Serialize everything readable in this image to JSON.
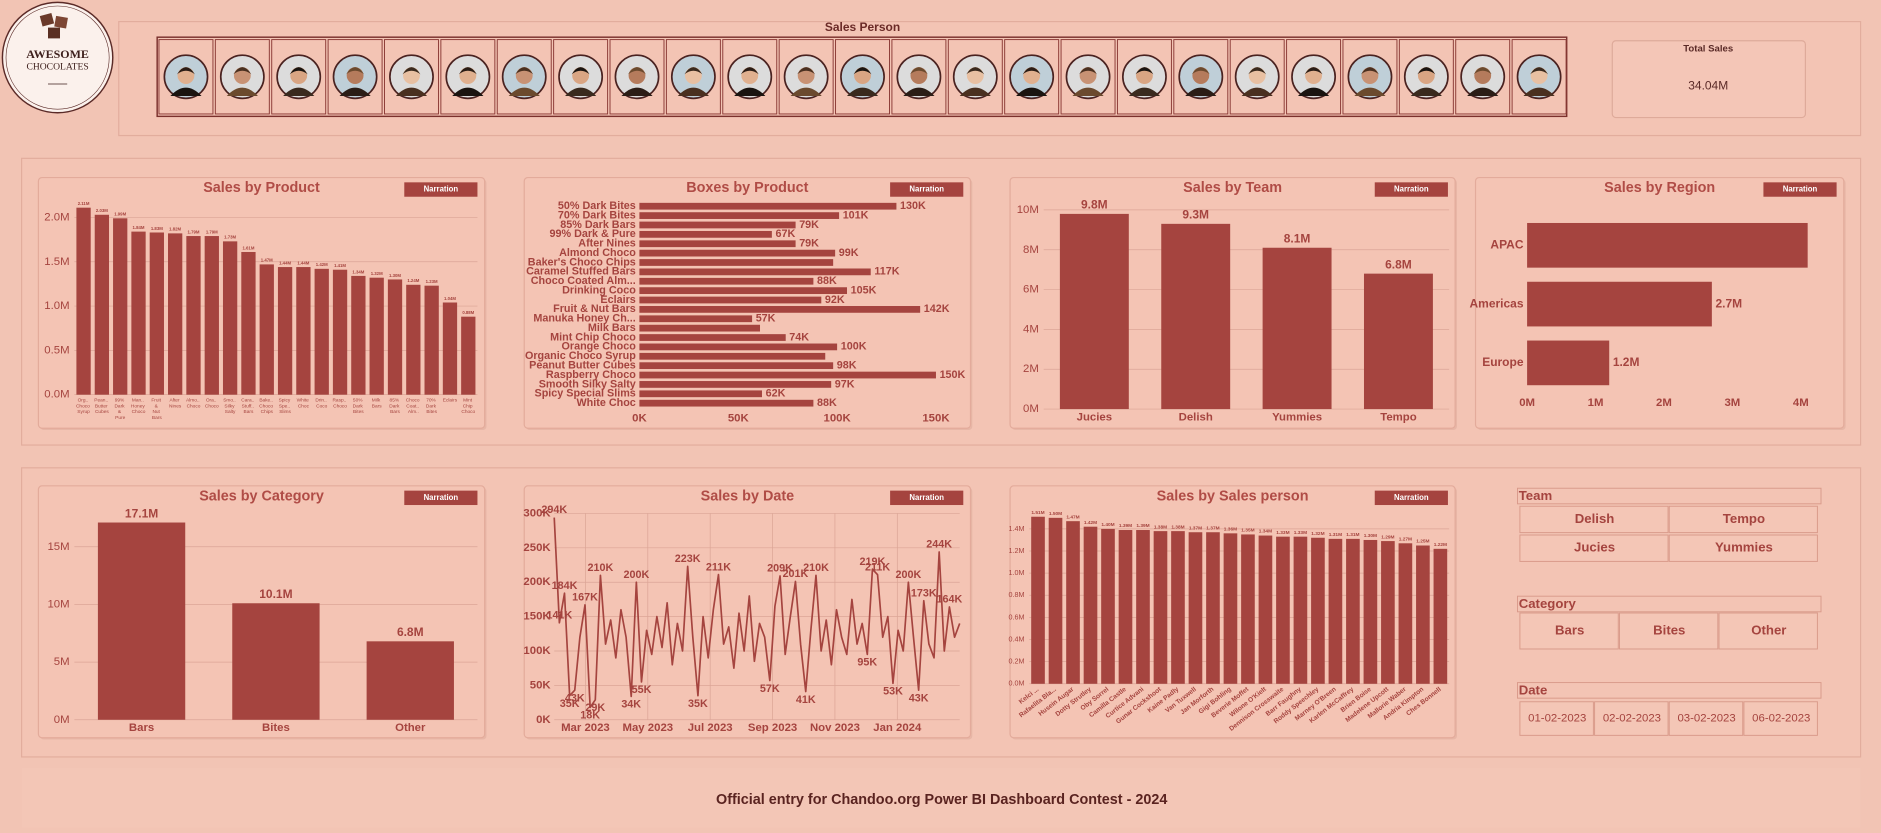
{
  "logo": {
    "line1": "AWESOME",
    "line2": "CHOCOLATES"
  },
  "header": {
    "title": "Sales Person"
  },
  "kpi": {
    "label": "Total Sales",
    "value": "34.04M"
  },
  "narration": "Narration",
  "footer": "Official entry for Chandoo.org Power BI Dashboard Contest - 2024",
  "slicers": [
    {
      "title": "Team",
      "items": [
        "Delish",
        "Tempo",
        "Jucies",
        "Yummies"
      ]
    },
    {
      "title": "Category",
      "items": [
        "Bars",
        "Bites",
        "Other"
      ]
    },
    {
      "title": "Date",
      "items": [
        "01-02-2023",
        "02-02-2023",
        "03-02-2023",
        "06-02-2023"
      ]
    }
  ],
  "chart_data": [
    {
      "type": "bar",
      "title": "Sales by Product",
      "color": "#a5443f",
      "grid": true,
      "categories": [
        "Org.. Choco Syrup",
        "Pean.. Butter Cubes",
        "99% Dark & Pure",
        "Man.. Honey Choco",
        "Fruit & Nut Bars",
        "After Nines",
        "Almo.. Choco",
        "Ora.. Choco",
        "Smo.. Silky Salty",
        "Cara.. Stuff.. Bars",
        "Bake.. Choco Chips",
        "Spicy Spe.. Slims",
        "White Choc",
        "Drin.. Coco",
        "Rasp.. Choco",
        "50% Dark Bites",
        "Milk Bars",
        "85% Dark Bars",
        "Choco Coat.. Alm..",
        "70% Dark Bites",
        "Eclairs",
        "Mint Chip Choco"
      ],
      "values": [
        2110000,
        2030000,
        1990000,
        1840000,
        1830000,
        1820000,
        1790000,
        1790000,
        1730000,
        1610000,
        1470000,
        1440000,
        1440000,
        1420000,
        1410000,
        1340000,
        1320000,
        1300000,
        1240000,
        1230000,
        1040000,
        880000
      ],
      "value_labels": [
        "2.11M",
        "2.03M",
        "1.99M",
        "1.84M",
        "1.83M",
        "1.82M",
        "1.79M",
        "1.79M",
        "1.73M",
        "1.61M",
        "1.47M",
        "1.44M",
        "1.44M",
        "1.42M",
        "1.41M",
        "1.34M",
        "1.32M",
        "1.30M",
        "1.24M",
        "1.23M",
        "1.04M",
        "0.88M"
      ],
      "ylim": [
        0,
        2220000
      ],
      "yticks": [
        {
          "value": 0,
          "label": "0.0M"
        },
        {
          "value": 500000,
          "label": "0.5M"
        },
        {
          "value": 1000000,
          "label": "1.0M"
        },
        {
          "value": 1500000,
          "label": "1.5M"
        },
        {
          "value": 2000000,
          "label": "2.0M"
        }
      ]
    },
    {
      "type": "bar",
      "orientation": "horizontal",
      "title": "Boxes by Product",
      "color": "#a5443f",
      "grid": false,
      "categories": [
        "50% Dark Bites",
        "70% Dark Bites",
        "85% Dark Bars",
        "99% Dark & Pure",
        "After Nines",
        "Almond Choco",
        "Baker's Choco Chips",
        "Caramel Stuffed Bars",
        "Choco Coated Alm...",
        "Drinking Coco",
        "Eclairs",
        "Fruit & Nut Bars",
        "Manuka Honey Ch...",
        "Milk Bars",
        "Mint Chip Choco",
        "Orange Choco",
        "Organic Choco Syrup",
        "Peanut Butter Cubes",
        "Raspberry Choco",
        "Smooth Silky Salty",
        "Spicy Special Slims",
        "White Choc"
      ],
      "values": [
        130000,
        101000,
        79000,
        67000,
        79000,
        99000,
        98000,
        117000,
        88000,
        105000,
        92000,
        142000,
        57000,
        61000,
        74000,
        100000,
        94000,
        98000,
        150000,
        97000,
        62000,
        88000
      ],
      "value_labels": [
        "130K",
        "101K",
        "79K",
        "67K",
        "79K",
        "99K",
        null,
        "117K",
        "88K",
        "105K",
        "92K",
        "142K",
        "57K",
        null,
        "74K",
        "100K",
        null,
        "98K",
        "150K",
        "97K",
        "62K",
        "88K"
      ],
      "xlim": [
        0,
        162000
      ],
      "xticks": [
        {
          "value": 0,
          "label": "0K"
        },
        {
          "value": 50000,
          "label": "50K"
        },
        {
          "value": 100000,
          "label": "100K"
        },
        {
          "value": 150000,
          "label": "150K"
        }
      ]
    },
    {
      "type": "bar",
      "title": "Sales by Team",
      "color": "#a5443f",
      "grid": true,
      "categories": [
        "Jucies",
        "Delish",
        "Yummies",
        "Tempo"
      ],
      "values": [
        9800000,
        9300000,
        8100000,
        6800000
      ],
      "value_labels": [
        "9.8M",
        "9.3M",
        "8.1M",
        "6.8M"
      ],
      "ylim": [
        0,
        10300000
      ],
      "yticks": [
        {
          "value": 0,
          "label": "0M"
        },
        {
          "value": 2000000,
          "label": "2M"
        },
        {
          "value": 4000000,
          "label": "4M"
        },
        {
          "value": 6000000,
          "label": "6M"
        },
        {
          "value": 8000000,
          "label": "8M"
        },
        {
          "value": 10000000,
          "label": "10M"
        }
      ]
    },
    {
      "type": "bar",
      "orientation": "horizontal",
      "title": "Sales by Region",
      "color": "#a5443f",
      "grid": false,
      "categories": [
        "APAC",
        "Americas",
        "Europe"
      ],
      "values": [
        4100000,
        2700000,
        1200000
      ],
      "value_labels": [
        null,
        "2.7M",
        "1.2M"
      ],
      "xlim": [
        0,
        4330000
      ],
      "xticks": [
        {
          "value": 0,
          "label": "0M"
        },
        {
          "value": 1000000,
          "label": "1M"
        },
        {
          "value": 2000000,
          "label": "2M"
        },
        {
          "value": 3000000,
          "label": "3M"
        },
        {
          "value": 4000000,
          "label": "4M"
        }
      ]
    },
    {
      "type": "bar",
      "title": "Sales by Category",
      "color": "#a5443f",
      "grid": true,
      "categories": [
        "Bars",
        "Bites",
        "Other"
      ],
      "values": [
        17100000,
        10100000,
        6800000
      ],
      "value_labels": [
        "17.1M",
        "10.1M",
        "6.8M"
      ],
      "ylim": [
        0,
        18200000
      ],
      "yticks": [
        {
          "value": 0,
          "label": "0M"
        },
        {
          "value": 5000000,
          "label": "5M"
        },
        {
          "value": 10000000,
          "label": "10M"
        },
        {
          "value": 15000000,
          "label": "15M"
        }
      ]
    },
    {
      "type": "line",
      "title": "Sales by Date",
      "color": "#a5443f",
      "grid": true,
      "values": [
        294000,
        141000,
        184000,
        35000,
        43000,
        120000,
        167000,
        18000,
        29000,
        210000,
        110000,
        145000,
        90000,
        160000,
        120000,
        34000,
        200000,
        55000,
        130000,
        95000,
        150000,
        105000,
        170000,
        80000,
        140000,
        100000,
        223000,
        120000,
        35000,
        150000,
        90000,
        160000,
        211000,
        110000,
        135000,
        75000,
        155000,
        100000,
        180000,
        85000,
        140000,
        120000,
        57000,
        165000,
        209000,
        95000,
        150000,
        201000,
        110000,
        41000,
        130000,
        210000,
        100000,
        145000,
        80000,
        160000,
        120000,
        95000,
        175000,
        110000,
        140000,
        95000,
        219000,
        211000,
        120000,
        150000,
        53000,
        130000,
        100000,
        200000,
        120000,
        43000,
        173000,
        110000,
        90000,
        244000,
        100000,
        164000,
        120000,
        140000
      ],
      "value_labels": [
        "294K",
        "141K",
        "184K",
        "35K",
        "43K",
        null,
        "167K",
        "18K",
        "29K",
        "210K",
        null,
        null,
        null,
        null,
        null,
        "34K",
        "200K",
        "55K",
        null,
        null,
        null,
        null,
        null,
        null,
        null,
        null,
        "223K",
        null,
        "35K",
        null,
        null,
        null,
        "211K",
        null,
        null,
        null,
        null,
        null,
        null,
        null,
        null,
        null,
        "57K",
        null,
        "209K",
        null,
        null,
        "201K",
        null,
        "41K",
        null,
        "210K",
        null,
        null,
        null,
        null,
        null,
        null,
        null,
        null,
        null,
        "95K",
        "219K",
        "211K",
        null,
        null,
        "53K",
        null,
        null,
        "200K",
        null,
        "43K",
        "173K",
        null,
        null,
        "244K",
        null,
        "164K",
        null,
        null
      ],
      "xlim": [
        "2023-02",
        "2024-03"
      ],
      "xticks": [
        {
          "value": "2023-03",
          "label": "Mar 2023"
        },
        {
          "value": "2023-05",
          "label": "May 2023"
        },
        {
          "value": "2023-07",
          "label": "Jul 2023"
        },
        {
          "value": "2023-09",
          "label": "Sep 2023"
        },
        {
          "value": "2023-11",
          "label": "Nov 2023"
        },
        {
          "value": "2024-01",
          "label": "Jan 2024"
        }
      ],
      "ylim": [
        0,
        300000
      ],
      "yticks": [
        {
          "value": 0,
          "label": "0K"
        },
        {
          "value": 50000,
          "label": "50K"
        },
        {
          "value": 100000,
          "label": "100K"
        },
        {
          "value": 150000,
          "label": "150K"
        },
        {
          "value": 200000,
          "label": "200K"
        },
        {
          "value": 250000,
          "label": "250K"
        },
        {
          "value": 300000,
          "label": "300K"
        }
      ]
    },
    {
      "type": "bar",
      "title": "Sales by Sales person",
      "color": "#a5443f",
      "grid": true,
      "categories": [
        "Kelci ...",
        "Rafaelita Bla...",
        "Husein Augar",
        "Dotty Strutley",
        "Oby Sorrel",
        "Camilla Castle",
        "Curtice Advani",
        "Gunar Cockshoot",
        "Kaine Padly",
        "Van Tuxwell",
        "Jan Morforth",
        "Gigi Bohling",
        "Beverie Moffet",
        "Wilone O'Kielt",
        "Dennison Crosswaite",
        "Barr Faughny",
        "Roddy Speechley",
        "Marney O'Breen",
        "Karlen McCaffrey",
        "Brien Boise",
        "Madelene Upcott",
        "Mallorie Waber",
        "Andria Kimpton",
        "Ches Bonnell"
      ],
      "values": [
        1510000,
        1500000,
        1470000,
        1420000,
        1400000,
        1390000,
        1390000,
        1380000,
        1380000,
        1370000,
        1370000,
        1360000,
        1350000,
        1340000,
        1330000,
        1330000,
        1320000,
        1310000,
        1310000,
        1300000,
        1290000,
        1270000,
        1250000,
        1220000
      ],
      "value_labels": [
        "1.51M",
        "1.50M",
        "1.47M",
        "1.42M",
        "1.40M",
        "1.39M",
        "1.39M",
        "1.38M",
        "1.38M",
        "1.37M",
        "1.37M",
        "1.36M",
        "1.35M",
        "1.34M",
        "1.33M",
        "1.33M",
        "1.32M",
        "1.31M",
        "1.31M",
        "1.30M",
        "1.29M",
        "1.27M",
        "1.25M",
        "1.22M"
      ],
      "ylim": [
        0,
        1540000
      ],
      "yticks": [
        {
          "value": 0,
          "label": "0.0M"
        },
        {
          "value": 200000,
          "label": "0.2M"
        },
        {
          "value": 400000,
          "label": "0.4M"
        },
        {
          "value": 600000,
          "label": "0.6M"
        },
        {
          "value": 800000,
          "label": "0.8M"
        },
        {
          "value": 1000000,
          "label": "1.0M"
        },
        {
          "value": 1200000,
          "label": "1.2M"
        },
        {
          "value": 1400000,
          "label": "1.4M"
        }
      ]
    }
  ]
}
